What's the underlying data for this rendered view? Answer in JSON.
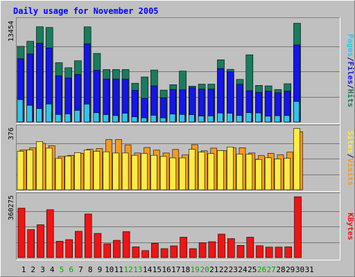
{
  "chart_data": {
    "type": "bar",
    "title": "Daily usage for November 2005",
    "categories": [
      "1",
      "2",
      "3",
      "4",
      "5",
      "6",
      "7",
      "8",
      "9",
      "10",
      "11",
      "12",
      "13",
      "14",
      "15",
      "16",
      "17",
      "18",
      "19",
      "20",
      "21",
      "22",
      "23",
      "24",
      "25",
      "26",
      "27",
      "28",
      "29",
      "30",
      "31"
    ],
    "weekend_days": [
      "5",
      "6",
      "12",
      "13",
      "19",
      "20",
      "26",
      "27"
    ],
    "panels": [
      {
        "id": "hits_files_pages",
        "y_tick_label": "13454",
        "ymax": 13454,
        "right_labels": [
          "Pages",
          "/",
          "Files",
          "/",
          "Hits"
        ],
        "series": [
          {
            "name": "Hits",
            "color": "#1a7b5e",
            "values": [
              10050,
              10730,
              12660,
              12570,
              7880,
              7210,
              8140,
              12640,
              9110,
              6970,
              6970,
              6970,
              5140,
              5980,
              6900,
              4230,
              4950,
              6760,
              4760,
              5020,
              5020,
              8270,
              6990,
              5650,
              8930,
              4860,
              4790,
              4310,
              5080,
              13120,
              0
            ]
          },
          {
            "name": "Files",
            "color": "#1515e8",
            "values": [
              8400,
              9040,
              10450,
              9840,
              6130,
              5830,
              6310,
              10390,
              6870,
              5700,
              5700,
              5700,
              4200,
              3140,
              4790,
              3220,
              4320,
              4270,
              4560,
              4370,
              4360,
              7100,
              6670,
              5000,
              4150,
              3920,
              4080,
              3890,
              4100,
              10240,
              0
            ]
          },
          {
            "name": "Pages",
            "color": "#2ec5ef",
            "values": [
              2960,
              2200,
              1770,
              2380,
              990,
              1060,
              1530,
              2370,
              1220,
              970,
              840,
              1150,
              670,
              530,
              880,
              530,
              1040,
              990,
              950,
              770,
              790,
              1180,
              1150,
              850,
              1230,
              1190,
              760,
              820,
              850,
              2720,
              0
            ]
          }
        ]
      },
      {
        "id": "sites_visits",
        "y_tick_label": "376",
        "ymax": 376,
        "right_labels": [
          "Sites",
          "/",
          "Visits"
        ],
        "series": [
          {
            "name": "Visits",
            "color": "#f79a1c",
            "values": [
              240,
              253,
              280,
              266,
              201,
              208,
              220,
              244,
              249,
              303,
              303,
              271,
              222,
              255,
              239,
              222,
              243,
              210,
              272,
              235,
              251,
              236,
              253,
              253,
              222,
              206,
              220,
              210,
              227,
              350,
              0
            ]
          },
          {
            "name": "Sites",
            "color": "#ffeb48",
            "values": [
              232,
              240,
              291,
              251,
              189,
              203,
              224,
              240,
              232,
              229,
              222,
              222,
              208,
              218,
              208,
              201,
              192,
              192,
              244,
              227,
              218,
              236,
              258,
              215,
              214,
              183,
              193,
              186,
              190,
              370,
              0
            ]
          }
        ]
      },
      {
        "id": "kbytes",
        "y_tick_label": "360275",
        "ymax": 360275,
        "right_labels": [
          "KBytes"
        ],
        "series": [
          {
            "name": "KBytes",
            "color": "#f01414",
            "values": [
              286000,
              162000,
              190000,
              277000,
              95000,
              104000,
              152000,
              252000,
              140000,
              80000,
              100000,
              150000,
              62000,
              41000,
              83000,
              52000,
              68000,
              118000,
              52000,
              86000,
              92000,
              136000,
              110000,
              71000,
              118000,
              69000,
              61000,
              61000,
              62000,
              352000,
              0
            ]
          }
        ]
      }
    ],
    "colors": {
      "background": "#c0c0c0",
      "frame_light": "#ffffff",
      "frame_dark": "#808080",
      "gridline": "#777777",
      "title": "#0000ff",
      "axis_text": "#000080",
      "weekend_text": "#00aa00"
    }
  }
}
